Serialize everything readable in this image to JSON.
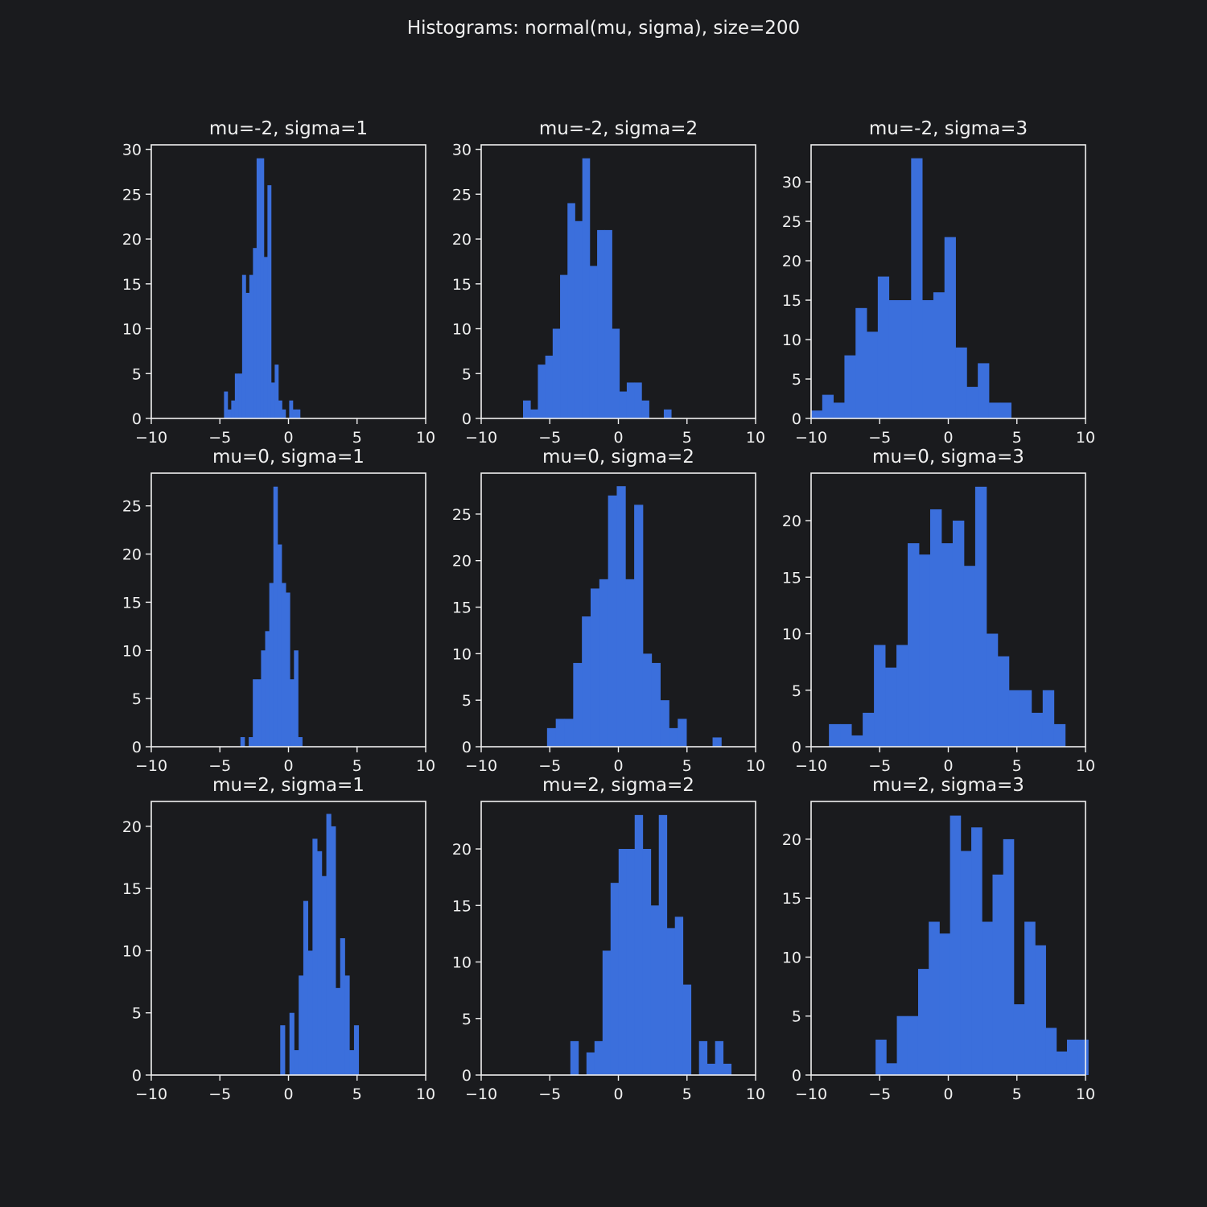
{
  "figure_title": "Histograms: normal(mu, sigma), size=200",
  "colors": {
    "background": "#1a1b1e",
    "bar": "#3b6fdc",
    "axes": "#f0f0f0"
  },
  "chart_data": [
    {
      "type": "bar",
      "title": "mu=-2, sigma=1",
      "xlim": [
        -10,
        10
      ],
      "ylim": [
        0,
        30.5
      ],
      "xticks": [
        -10,
        -5,
        0,
        5,
        10
      ],
      "yticks": [
        0,
        5,
        10,
        15,
        20,
        25,
        30
      ],
      "bin_start": -4.7,
      "bin_width": 0.264,
      "values": [
        3,
        1,
        2,
        5,
        5,
        16,
        14,
        16,
        19,
        29,
        29,
        18,
        26,
        4,
        6,
        2,
        1,
        0,
        2,
        1,
        1
      ]
    },
    {
      "type": "bar",
      "title": "mu=-2, sigma=2",
      "xlim": [
        -10,
        10
      ],
      "ylim": [
        0,
        30.5
      ],
      "xticks": [
        -10,
        -5,
        0,
        5,
        10
      ],
      "yticks": [
        0,
        5,
        10,
        15,
        20,
        25,
        30
      ],
      "bin_start": -6.95,
      "bin_width": 0.54,
      "values": [
        2,
        1,
        6,
        7,
        10,
        16,
        24,
        22,
        29,
        17,
        21,
        21,
        10,
        3,
        4,
        4,
        2,
        0,
        0,
        1
      ]
    },
    {
      "type": "bar",
      "title": "mu=-2, sigma=3",
      "xlim": [
        -10,
        10
      ],
      "ylim": [
        0,
        34.7
      ],
      "xticks": [
        -10,
        -5,
        0,
        5,
        10
      ],
      "yticks": [
        0,
        5,
        10,
        15,
        20,
        25,
        30
      ],
      "bin_start": -10,
      "bin_width": 0.81,
      "values": [
        1,
        3,
        2,
        8,
        14,
        11,
        18,
        15,
        15,
        33,
        15,
        16,
        23,
        9,
        4,
        7,
        2,
        2
      ]
    },
    {
      "type": "bar",
      "title": "mu=0, sigma=1",
      "xlim": [
        -10,
        10
      ],
      "ylim": [
        0,
        28.4
      ],
      "xticks": [
        -10,
        -5,
        0,
        5,
        10
      ],
      "yticks": [
        0,
        5,
        10,
        15,
        20,
        25
      ],
      "bin_start": -3.5,
      "bin_width": 0.3,
      "values": [
        1,
        0,
        1,
        7,
        7,
        10,
        12,
        17,
        27,
        21,
        17,
        16,
        7,
        10,
        1
      ]
    },
    {
      "type": "bar",
      "title": "mu=0, sigma=2",
      "xlim": [
        -10,
        10
      ],
      "ylim": [
        0,
        29.4
      ],
      "xticks": [
        -10,
        -5,
        0,
        5,
        10
      ],
      "yticks": [
        0,
        5,
        10,
        15,
        20,
        25
      ],
      "bin_start": -5.2,
      "bin_width": 0.635,
      "values": [
        2,
        3,
        3,
        9,
        14,
        17,
        18,
        27,
        28,
        18,
        26,
        10,
        9,
        5,
        2,
        3,
        0,
        0,
        0,
        1
      ]
    },
    {
      "type": "bar",
      "title": "mu=0, sigma=3",
      "xlim": [
        -10,
        10
      ],
      "ylim": [
        0,
        24.2
      ],
      "xticks": [
        -10,
        -5,
        0,
        5,
        10
      ],
      "yticks": [
        0,
        5,
        10,
        15,
        20
      ],
      "bin_start": -8.7,
      "bin_width": 0.82,
      "values": [
        2,
        2,
        1,
        3,
        9,
        7,
        9,
        18,
        17,
        21,
        18,
        20,
        16,
        23,
        10,
        8,
        5,
        5,
        3,
        5,
        2
      ]
    },
    {
      "type": "bar",
      "title": "mu=2, sigma=1",
      "xlim": [
        -10,
        10
      ],
      "ylim": [
        0,
        22
      ],
      "xticks": [
        -10,
        -5,
        0,
        5,
        10
      ],
      "yticks": [
        0,
        5,
        10,
        15,
        20
      ],
      "bin_start": -0.6,
      "bin_width": 0.336,
      "values": [
        4,
        0,
        5,
        2,
        8,
        14,
        10,
        19,
        18,
        16,
        21,
        20,
        7,
        11,
        8,
        2,
        4
      ]
    },
    {
      "type": "bar",
      "title": "mu=2, sigma=2",
      "xlim": [
        -10,
        10
      ],
      "ylim": [
        0,
        24.2
      ],
      "xticks": [
        -10,
        -5,
        0,
        5,
        10
      ],
      "yticks": [
        0,
        5,
        10,
        15,
        20
      ],
      "bin_start": -3.5,
      "bin_width": 0.586,
      "values": [
        3,
        0,
        2,
        3,
        11,
        17,
        20,
        20,
        23,
        20,
        15,
        23,
        13,
        14,
        8,
        0,
        3,
        1,
        3,
        1
      ]
    },
    {
      "type": "bar",
      "title": "mu=2, sigma=3",
      "xlim": [
        -10,
        10
      ],
      "ylim": [
        0,
        23.2
      ],
      "xticks": [
        -10,
        -5,
        0,
        5,
        10
      ],
      "yticks": [
        0,
        5,
        10,
        15,
        20
      ],
      "bin_start": -5.3,
      "bin_width": 0.775,
      "values": [
        3,
        1,
        5,
        5,
        9,
        13,
        12,
        22,
        19,
        21,
        13,
        17,
        20,
        6,
        13,
        11,
        4,
        2,
        3,
        3
      ]
    }
  ]
}
